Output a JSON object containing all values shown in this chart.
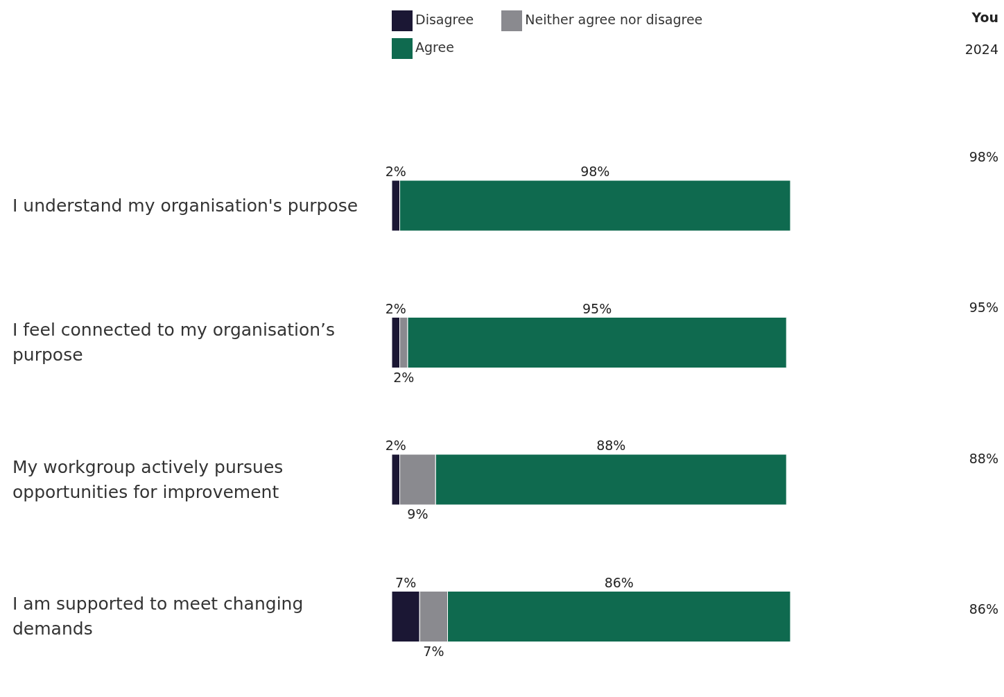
{
  "chart_data": {
    "type": "bar",
    "orientation": "horizontal",
    "stacked": true,
    "categories": [
      "I understand my organisation's purpose",
      "I feel connected to my organisation’s purpose",
      "My workgroup actively pursues opportunities for improvement",
      "I am supported to meet changing demands"
    ],
    "series": [
      {
        "name": "Disagree",
        "color": "#1b1734",
        "values": [
          2,
          2,
          2,
          7
        ],
        "value_labels": [
          "2%",
          "2%",
          "2%",
          "7%"
        ]
      },
      {
        "name": "Neither agree nor disagree",
        "color": "#8a8a8f",
        "values": [
          null,
          2,
          9,
          7
        ],
        "value_labels": [
          null,
          "2%",
          "9%",
          "7%"
        ]
      },
      {
        "name": "Agree",
        "color": "#0f6a4f",
        "values": [
          98,
          95,
          88,
          86
        ],
        "value_labels": [
          "98%",
          "95%",
          "88%",
          "86%"
        ]
      }
    ],
    "xlim": [
      0,
      100
    ],
    "legend": "top",
    "tick_labels": "y",
    "annotations": [
      "You",
      "2024",
      "98%",
      "95%",
      "88%",
      "86%"
    ]
  }
}
